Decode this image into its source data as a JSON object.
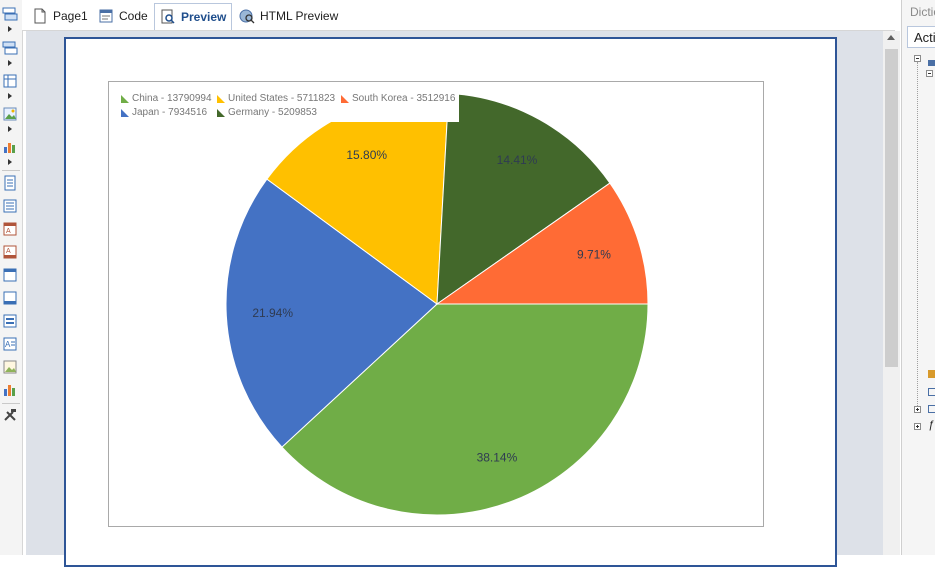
{
  "tabs": [
    {
      "label": "Page1",
      "icon": "page-icon"
    },
    {
      "label": "Code",
      "icon": "code-icon"
    },
    {
      "label": "Preview",
      "icon": "preview-icon",
      "active": true
    },
    {
      "label": "HTML Preview",
      "icon": "html-preview-icon"
    }
  ],
  "toolbox": {
    "icons": [
      "bands-icon",
      "cross-bands-icon",
      "cross-tab-icon",
      "image-icon",
      "chart-icon",
      "page-header-icon",
      "report-title-icon",
      "header-icon",
      "footer-icon",
      "page-footer-icon",
      "report-summary-icon",
      "data-band-icon",
      "group-header-icon",
      "picture-icon",
      "bar-chart-icon",
      "tools-icon"
    ]
  },
  "right_panel": {
    "title": "Dictionary",
    "actions_label": "Actions"
  },
  "chart_data": {
    "type": "pie",
    "title": "",
    "categories": [
      "China",
      "United States",
      "South Korea",
      "Japan",
      "Germany"
    ],
    "values": [
      13790994,
      5711823,
      3512916,
      7934516,
      5209853
    ],
    "slice_labels": [
      "38.14%",
      "15.80%",
      "9.71%",
      "21.94%",
      "14.41%"
    ],
    "legend": {
      "placement": "top-left",
      "entries": [
        "China - 13790994",
        "United States - 5711823",
        "South Korea - 3512916",
        "Japan - 7934516",
        "Germany - 5209853"
      ]
    },
    "colors": {
      "China": "#70ad47",
      "United States": "#ffc000",
      "South Korea": "#ff6b35",
      "Japan": "#4472c4",
      "Germany": "#43682b"
    },
    "label_color": "#2f3b52"
  }
}
